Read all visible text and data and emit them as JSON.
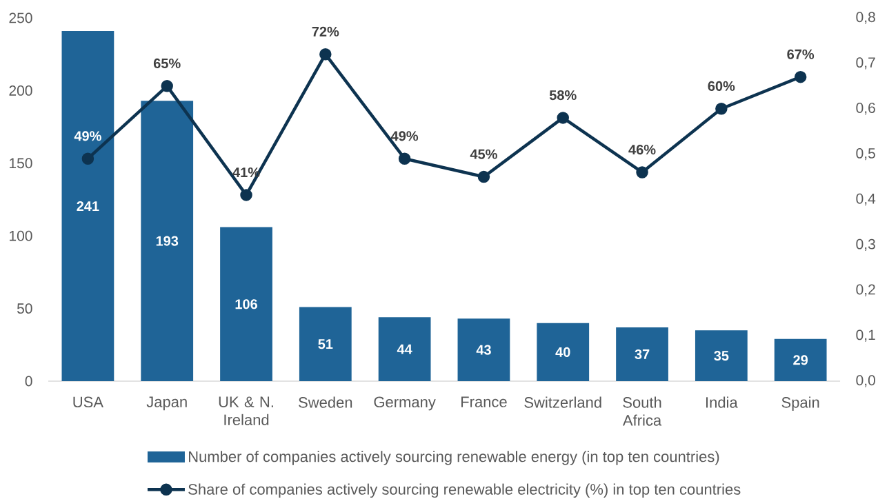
{
  "chart_data": {
    "type": "bar",
    "categories": [
      "USA",
      "Japan",
      "UK & N. Ireland",
      "Sweden",
      "Germany",
      "France",
      "Switzerland",
      "South Africa",
      "India",
      "Spain"
    ],
    "series": [
      {
        "name": "Number of companies actively sourcing renewable energy (in top ten countries)",
        "color": "#1f6497",
        "values": [
          241,
          193,
          106,
          51,
          44,
          43,
          40,
          37,
          35,
          29
        ],
        "value_labels": [
          "241",
          "193",
          "106",
          "51",
          "44",
          "43",
          "40",
          "37",
          "35",
          "29"
        ]
      },
      {
        "name": "Share of companies actively sourcing renewable electricity (%) in top ten countries",
        "type": "line",
        "axis": "y2",
        "color": "#0d3350",
        "marker": "circle",
        "line_style": "solid",
        "values": [
          0.49,
          0.65,
          0.41,
          0.72,
          0.49,
          0.45,
          0.58,
          0.46,
          0.6,
          0.67
        ],
        "value_labels": [
          "49%",
          "65%",
          "41%",
          "72%",
          "49%",
          "45%",
          "58%",
          "46%",
          "60%",
          "67%"
        ]
      }
    ],
    "ylim": [
      0,
      250
    ],
    "yticks": [
      0,
      50,
      100,
      150,
      200,
      250
    ],
    "y2lim": [
      0,
      0.8
    ],
    "y2ticks": [
      {
        "value": 0,
        "label": "0,0"
      },
      {
        "value": 0.1,
        "label": "0,1"
      },
      {
        "value": 0.2,
        "label": "0,2"
      },
      {
        "value": 0.3,
        "label": "0,3"
      },
      {
        "value": 0.4,
        "label": "0,4"
      },
      {
        "value": 0.5,
        "label": "0,5"
      },
      {
        "value": 0.6,
        "label": "0,6"
      },
      {
        "value": 0.7,
        "label": "0,7"
      },
      {
        "value": 0.8,
        "label": "0,8"
      }
    ],
    "legend": "bottom"
  }
}
